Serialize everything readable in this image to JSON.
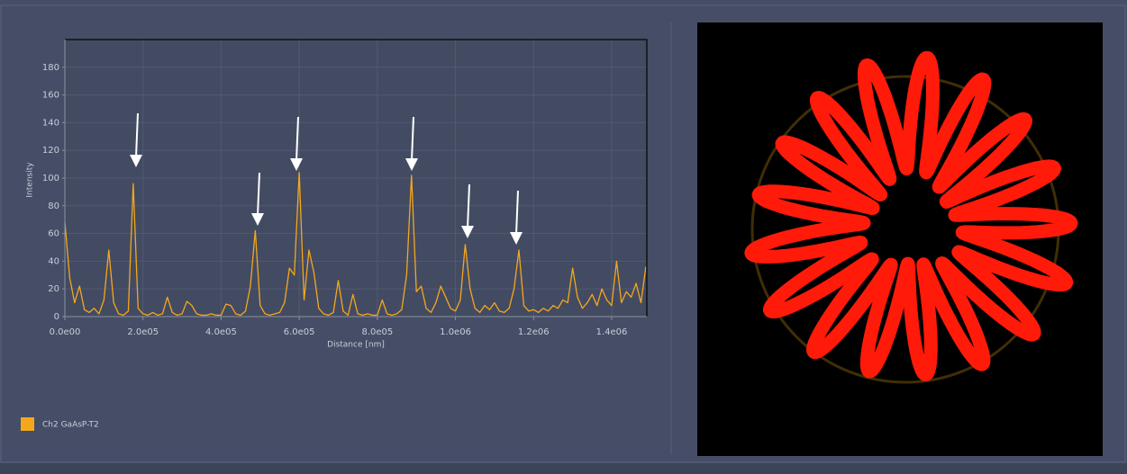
{
  "chart_data": {
    "type": "line",
    "xlabel": "Distance [nm]",
    "ylabel": "Intensity",
    "x": [
      0,
      12500,
      25000,
      37500,
      50000,
      62500,
      75000,
      87500,
      100000,
      112500,
      125000,
      137500,
      150000,
      162500,
      175000,
      187500,
      200000,
      212500,
      225000,
      237500,
      250000,
      262500,
      275000,
      287500,
      300000,
      312500,
      325000,
      337500,
      350000,
      362500,
      375000,
      387500,
      400000,
      412500,
      425000,
      437500,
      450000,
      462500,
      475000,
      487500,
      500000,
      512500,
      525000,
      537500,
      550000,
      562500,
      575000,
      587500,
      600000,
      612500,
      625000,
      637500,
      650000,
      662500,
      675000,
      687500,
      700000,
      712500,
      725000,
      737500,
      750000,
      762500,
      775000,
      787500,
      800000,
      812500,
      825000,
      837500,
      850000,
      862500,
      875000,
      887500,
      900000,
      912500,
      925000,
      937500,
      950000,
      962500,
      975000,
      987500,
      1000000,
      1012500,
      1025000,
      1037500,
      1050000,
      1062500,
      1075000,
      1087500,
      1100000,
      1112500,
      1125000,
      1137500,
      1150000,
      1162500,
      1175000,
      1187500,
      1200000,
      1212500,
      1225000,
      1237500,
      1250000,
      1262500,
      1275000,
      1287500,
      1300000,
      1312500,
      1325000,
      1337500,
      1350000,
      1362500,
      1375000,
      1387500,
      1400000,
      1412500,
      1425000,
      1437500,
      1450000,
      1462500,
      1475000,
      1487500
    ],
    "series": [
      {
        "name": "Ch2 GaAsP-T2",
        "color": "#f5a71c",
        "values": [
          68,
          28,
          10,
          22,
          5,
          3,
          6,
          2,
          12,
          48,
          10,
          2,
          1,
          4,
          96,
          6,
          2,
          1,
          3,
          1,
          2,
          14,
          3,
          1,
          2,
          11,
          8,
          2,
          1,
          1,
          2,
          1,
          1,
          9,
          8,
          2,
          1,
          4,
          22,
          62,
          8,
          2,
          1,
          2,
          3,
          10,
          35,
          30,
          104,
          12,
          48,
          32,
          6,
          2,
          1,
          3,
          26,
          4,
          1,
          16,
          2,
          1,
          2,
          1,
          1,
          12,
          2,
          1,
          2,
          5,
          30,
          102,
          18,
          22,
          6,
          3,
          10,
          22,
          14,
          6,
          4,
          12,
          52,
          20,
          6,
          3,
          8,
          5,
          10,
          4,
          3,
          6,
          20,
          48,
          8,
          4,
          5,
          3,
          6,
          4,
          8,
          6,
          12,
          10,
          35,
          14,
          6,
          10,
          16,
          8,
          20,
          12,
          8,
          40,
          10,
          18,
          14,
          24,
          10,
          36
        ]
      }
    ],
    "xlim": [
      0,
      1490000
    ],
    "ylim": [
      0,
      200
    ],
    "xticks": [
      {
        "value": 0,
        "label": "0.0e00"
      },
      {
        "value": 200000,
        "label": "2.0e05"
      },
      {
        "value": 400000,
        "label": "4.0e05"
      },
      {
        "value": 600000,
        "label": "6.0e05"
      },
      {
        "value": 800000,
        "label": "8.0e05"
      },
      {
        "value": 1000000,
        "label": "1.0e06"
      },
      {
        "value": 1200000,
        "label": "1.2e06"
      },
      {
        "value": 1400000,
        "label": "1.4e06"
      }
    ],
    "yticks": [
      0,
      20,
      40,
      60,
      80,
      100,
      120,
      140,
      160,
      180
    ],
    "grid": true
  }
}
